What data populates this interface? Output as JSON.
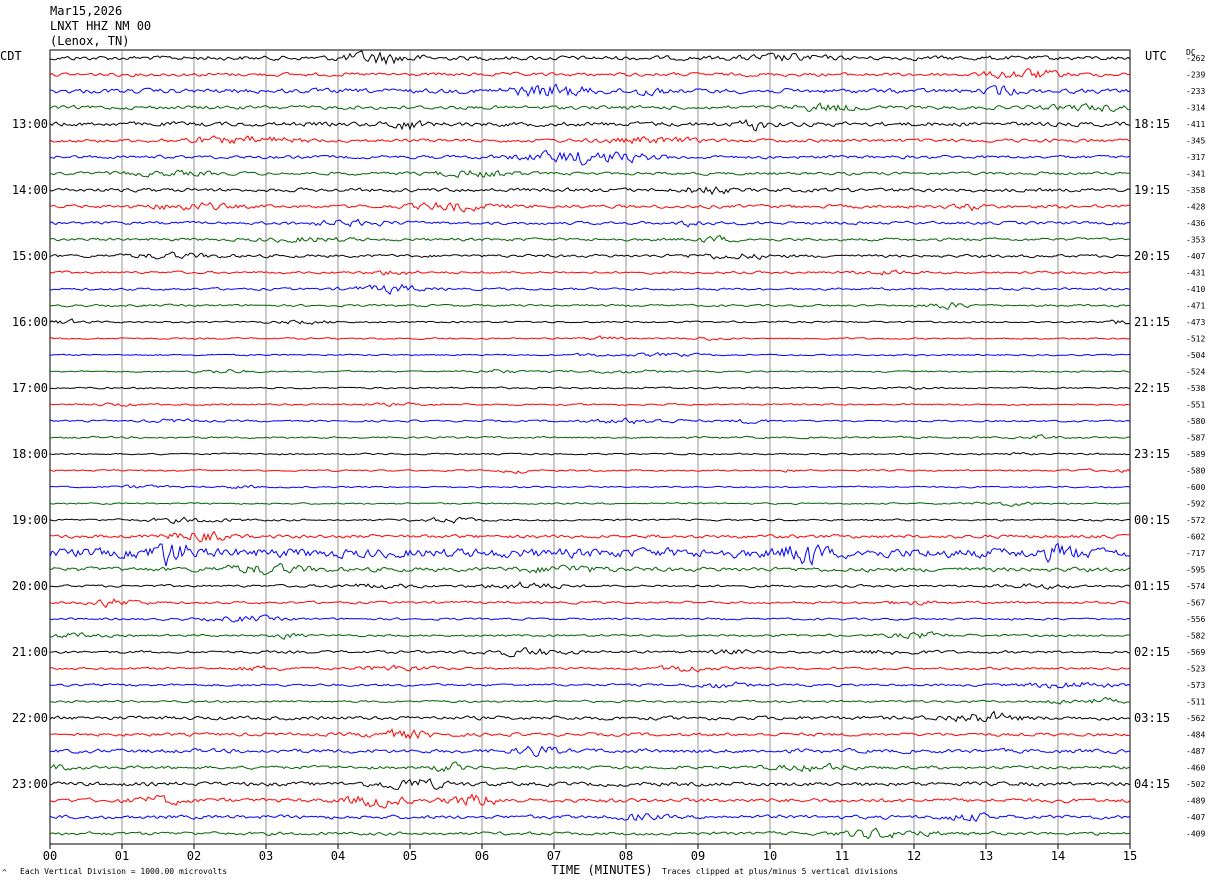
{
  "header": {
    "date": "Mar15,2026",
    "station": "LNXT HHZ NM 00",
    "location": "(Lenox, TN)"
  },
  "left_zone": "CDT",
  "right_zone": "UTC",
  "dc_header": "DC",
  "footer": {
    "left_note": "Each Vertical Division = 1000.00 microvolts",
    "xlabel": "TIME (MINUTES)",
    "right_note": "Traces clipped at plus/minus 5 vertical divisions",
    "corner_mark": "^"
  },
  "colors": {
    "cycle": [
      "#000000",
      "#ff0000",
      "#0000ff",
      "#006400"
    ],
    "grid": "#000000"
  },
  "chart_data": {
    "type": "line",
    "title": "",
    "xlabel": "TIME (MINUTES)",
    "ylabel": "",
    "xlim": [
      0,
      15
    ],
    "x_ticks": [
      "00",
      "01",
      "02",
      "03",
      "04",
      "05",
      "06",
      "07",
      "08",
      "09",
      "10",
      "11",
      "12",
      "13",
      "14",
      "15"
    ],
    "left_hour_labels": [
      "13:00",
      "14:00",
      "15:00",
      "16:00",
      "17:00",
      "18:00",
      "19:00",
      "20:00",
      "21:00",
      "22:00",
      "23:00"
    ],
    "right_hour_labels": [
      "18:15",
      "19:15",
      "20:15",
      "21:15",
      "22:15",
      "23:15",
      "00:15",
      "01:15",
      "02:15",
      "03:15",
      "04:15"
    ],
    "hour_label_trace_indices": [
      4,
      8,
      12,
      16,
      20,
      24,
      28,
      32,
      36,
      40,
      44
    ],
    "traces": [
      {
        "dc": "-262",
        "amp": 3.2
      },
      {
        "dc": "-239",
        "amp": 2.6
      },
      {
        "dc": "-233",
        "amp": 3.4
      },
      {
        "dc": "-314",
        "amp": 2.8
      },
      {
        "dc": "-411",
        "amp": 3.3
      },
      {
        "dc": "-345",
        "amp": 2.6
      },
      {
        "dc": "-317",
        "amp": 2.4
      },
      {
        "dc": "-341",
        "amp": 2.2
      },
      {
        "dc": "-358",
        "amp": 2.8
      },
      {
        "dc": "-428",
        "amp": 2.6
      },
      {
        "dc": "-436",
        "amp": 2.2
      },
      {
        "dc": "-353",
        "amp": 2.2
      },
      {
        "dc": "-407",
        "amp": 2.2
      },
      {
        "dc": "-431",
        "amp": 1.8
      },
      {
        "dc": "-410",
        "amp": 1.8
      },
      {
        "dc": "-471",
        "amp": 1.6
      },
      {
        "dc": "-473",
        "amp": 1.3
      },
      {
        "dc": "-512",
        "amp": 1.2
      },
      {
        "dc": "-504",
        "amp": 1.1
      },
      {
        "dc": "-524",
        "amp": 1.1
      },
      {
        "dc": "-538",
        "amp": 1.3
      },
      {
        "dc": "-551",
        "amp": 1.3
      },
      {
        "dc": "-580",
        "amp": 1.4
      },
      {
        "dc": "-587",
        "amp": 1.4
      },
      {
        "dc": "-589",
        "amp": 1.2
      },
      {
        "dc": "-580",
        "amp": 1.2
      },
      {
        "dc": "-600",
        "amp": 1.2
      },
      {
        "dc": "-592",
        "amp": 1.2
      },
      {
        "dc": "-572",
        "amp": 1.4
      },
      {
        "dc": "-602",
        "amp": 2.6
      },
      {
        "dc": "-717",
        "amp": 7.0
      },
      {
        "dc": "-595",
        "amp": 3.2
      },
      {
        "dc": "-574",
        "amp": 1.8
      },
      {
        "dc": "-567",
        "amp": 1.8
      },
      {
        "dc": "-556",
        "amp": 1.6
      },
      {
        "dc": "-582",
        "amp": 1.6
      },
      {
        "dc": "-569",
        "amp": 2.0
      },
      {
        "dc": "-523",
        "amp": 1.8
      },
      {
        "dc": "-573",
        "amp": 1.8
      },
      {
        "dc": "-511",
        "amp": 1.6
      },
      {
        "dc": "-562",
        "amp": 2.8
      },
      {
        "dc": "-484",
        "amp": 2.4
      },
      {
        "dc": "-487",
        "amp": 3.0
      },
      {
        "dc": "-460",
        "amp": 2.4
      },
      {
        "dc": "-502",
        "amp": 3.0
      },
      {
        "dc": "-489",
        "amp": 3.0
      },
      {
        "dc": "-407",
        "amp": 2.8
      },
      {
        "dc": "-409",
        "amp": 2.4
      }
    ]
  }
}
